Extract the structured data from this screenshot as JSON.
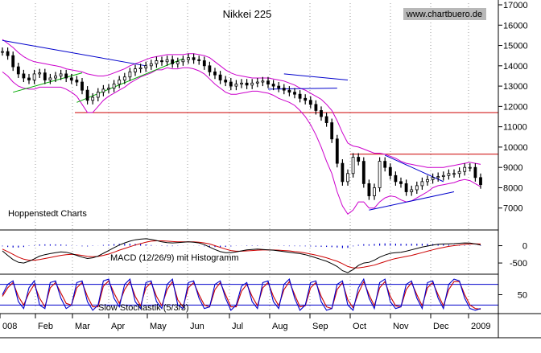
{
  "chart_data": [
    {
      "type": "line",
      "title": "Nikkei 225",
      "source": "www.chartbuero.de",
      "footer_label": "Hoppenstedt Charts",
      "y_axis_side": "right",
      "ylim": [
        6000,
        17000
      ],
      "yticks": [
        "7000",
        "8000",
        "9000",
        "10000",
        "11000",
        "12000",
        "13000",
        "14000",
        "15000",
        "16000",
        "17000"
      ],
      "x_labels": [
        "008",
        "Feb",
        "Mar",
        "Apr",
        "May",
        "Jun",
        "Jul",
        "Aug",
        "Sep",
        "Oct",
        "Nov",
        "Dec",
        "2009"
      ],
      "horizontal_levels": [
        11700,
        9650
      ],
      "colors": {
        "price": "#000000",
        "bands": "#cc00cc",
        "trend_down": "#0000cc",
        "trend_up": "#00aa00",
        "levels": "#cc0000"
      },
      "price_close": [
        14700,
        14500,
        13950,
        13600,
        13400,
        13300,
        13600,
        13650,
        13300,
        13400,
        13500,
        13600,
        13400,
        13300,
        13200,
        12800,
        12300,
        12450,
        12700,
        12850,
        12900,
        13100,
        13300,
        13450,
        13700,
        13850,
        13900,
        14000,
        14100,
        14250,
        14200,
        14300,
        14100,
        14200,
        14300,
        14400,
        14300,
        14250,
        14000,
        13700,
        13550,
        13300,
        13200,
        13000,
        13100,
        13150,
        13050,
        13150,
        13200,
        13250,
        13100,
        13000,
        12900,
        12800,
        12700,
        12600,
        12400,
        12300,
        12100,
        11800,
        11500,
        11200,
        10400,
        9200,
        8300,
        8700,
        9500,
        9300,
        8200,
        7600,
        8000,
        9300,
        9000,
        8600,
        8300,
        8200,
        7800,
        7900,
        8100,
        8300,
        8400,
        8500,
        8550,
        8600,
        8700,
        8700,
        8800,
        9000,
        9000,
        8500,
        8150
      ],
      "bollinger_upper": [
        15300,
        15100,
        14900,
        14650,
        14450,
        14300,
        14200,
        14150,
        14100,
        14050,
        14000,
        13950,
        13850,
        13800,
        13750,
        13700,
        13600,
        13550,
        13500,
        13500,
        13550,
        13650,
        13750,
        13850,
        14000,
        14100,
        14200,
        14300,
        14400,
        14450,
        14500,
        14550,
        14550,
        14550,
        14550,
        14600,
        14600,
        14550,
        14500,
        14400,
        14200,
        14000,
        13800,
        13650,
        13550,
        13500,
        13450,
        13400,
        13400,
        13400,
        13400,
        13350,
        13300,
        13250,
        13150,
        13050,
        12900,
        12800,
        12650,
        12500,
        12350,
        12100,
        11800,
        11300,
        10700,
        10200,
        10050,
        10000,
        9900,
        9800,
        9700,
        9700,
        9650,
        9550,
        9450,
        9300,
        9200,
        9150,
        9100,
        9050,
        9000,
        9000,
        9000,
        9000,
        9050,
        9100,
        9150,
        9200,
        9250,
        9200,
        9150
      ],
      "bollinger_lower": [
        13700,
        13500,
        13200,
        13000,
        12900,
        12850,
        12850,
        12950,
        12950,
        12950,
        12950,
        12950,
        12850,
        12700,
        12500,
        12100,
        11700,
        11700,
        12000,
        12300,
        12500,
        12650,
        12800,
        12950,
        13150,
        13300,
        13450,
        13550,
        13650,
        13800,
        13800,
        13900,
        13850,
        13850,
        13900,
        13900,
        13850,
        13750,
        13600,
        13350,
        13100,
        12900,
        12700,
        12600,
        12600,
        12650,
        12700,
        12750,
        12750,
        12700,
        12650,
        12550,
        12400,
        12300,
        12200,
        12050,
        11800,
        11500,
        11100,
        10600,
        10000,
        9300,
        8700,
        7800,
        7100,
        6700,
        6900,
        7300,
        7300,
        7000,
        7000,
        7300,
        7500,
        7600,
        7550,
        7400,
        7300,
        7350,
        7500,
        7650,
        7800,
        8000,
        8100,
        8150,
        8200,
        8250,
        8350,
        8400,
        8350,
        8200,
        8050
      ]
    },
    {
      "type": "line",
      "title": "MACD (12/26/9) mit Histogramm",
      "ylim": [
        -800,
        500
      ],
      "yticks": [
        "0",
        "-500"
      ],
      "colors": {
        "macd": "#000000",
        "signal": "#cc0000",
        "histogram": "#0000cc"
      },
      "macd": [
        -150,
        -280,
        -400,
        -480,
        -500,
        -450,
        -380,
        -300,
        -260,
        -230,
        -200,
        -180,
        -190,
        -230,
        -280,
        -330,
        -370,
        -350,
        -300,
        -220,
        -140,
        -60,
        20,
        80,
        130,
        170,
        190,
        200,
        180,
        150,
        110,
        90,
        80,
        90,
        100,
        110,
        100,
        80,
        30,
        -40,
        -110,
        -170,
        -200,
        -200,
        -180,
        -150,
        -120,
        -110,
        -100,
        -110,
        -120,
        -130,
        -150,
        -170,
        -190,
        -210,
        -230,
        -260,
        -300,
        -350,
        -400,
        -450,
        -520,
        -600,
        -720,
        -780,
        -690,
        -570,
        -500,
        -480,
        -420,
        -330,
        -270,
        -220,
        -200,
        -190,
        -160,
        -120,
        -80,
        -40,
        -10,
        20,
        40,
        50,
        55,
        60,
        70,
        80,
        75,
        50,
        20
      ],
      "signal": [
        -100,
        -170,
        -250,
        -330,
        -390,
        -420,
        -420,
        -400,
        -370,
        -340,
        -310,
        -280,
        -260,
        -250,
        -260,
        -280,
        -310,
        -320,
        -310,
        -280,
        -240,
        -190,
        -130,
        -80,
        -30,
        20,
        60,
        100,
        130,
        140,
        140,
        130,
        120,
        110,
        110,
        110,
        110,
        100,
        80,
        50,
        0,
        -50,
        -100,
        -140,
        -160,
        -160,
        -150,
        -140,
        -130,
        -125,
        -120,
        -125,
        -130,
        -140,
        -150,
        -170,
        -185,
        -210,
        -240,
        -270,
        -310,
        -350,
        -400,
        -450,
        -520,
        -600,
        -640,
        -640,
        -620,
        -590,
        -560,
        -510,
        -460,
        -410,
        -370,
        -340,
        -310,
        -280,
        -240,
        -200,
        -160,
        -120,
        -80,
        -50,
        -20,
        0,
        20,
        40,
        50,
        55,
        50
      ]
    },
    {
      "type": "line",
      "title": "Slow Stochastik (5/3/3)",
      "ylim": [
        0,
        100
      ],
      "yticks": [
        "50"
      ],
      "levels": [
        80,
        20
      ],
      "colors": {
        "k": "#0000cc",
        "d": "#cc0000",
        "levels": "#0000cc"
      },
      "k_line": [
        50,
        80,
        90,
        30,
        10,
        70,
        90,
        20,
        10,
        85,
        90,
        40,
        10,
        20,
        85,
        90,
        30,
        5,
        20,
        90,
        95,
        40,
        15,
        80,
        95,
        30,
        10,
        85,
        90,
        30,
        10,
        80,
        95,
        20,
        10,
        85,
        90,
        40,
        10,
        15,
        80,
        90,
        40,
        5,
        20,
        75,
        85,
        30,
        10,
        85,
        90,
        30,
        10,
        80,
        95,
        40,
        5,
        20,
        85,
        90,
        30,
        5,
        10,
        80,
        90,
        20,
        5,
        70,
        95,
        40,
        10,
        85,
        95,
        30,
        10,
        15,
        80,
        90,
        40,
        10,
        85,
        90,
        40,
        10,
        80,
        95,
        90,
        40,
        10,
        5,
        10
      ],
      "d_line": [
        45,
        70,
        85,
        45,
        20,
        55,
        80,
        40,
        15,
        70,
        85,
        55,
        25,
        20,
        70,
        85,
        45,
        15,
        15,
        75,
        90,
        55,
        25,
        65,
        88,
        45,
        18,
        70,
        85,
        45,
        18,
        65,
        88,
        35,
        15,
        70,
        85,
        50,
        20,
        15,
        65,
        85,
        50,
        15,
        15,
        60,
        80,
        45,
        18,
        70,
        85,
        45,
        18,
        65,
        88,
        50,
        15,
        18,
        70,
        85,
        45,
        15,
        10,
        65,
        85,
        35,
        12,
        55,
        88,
        50,
        18,
        70,
        88,
        45,
        18,
        15,
        65,
        85,
        50,
        18,
        70,
        85,
        50,
        18,
        65,
        88,
        88,
        50,
        20,
        10,
        8
      ]
    }
  ]
}
